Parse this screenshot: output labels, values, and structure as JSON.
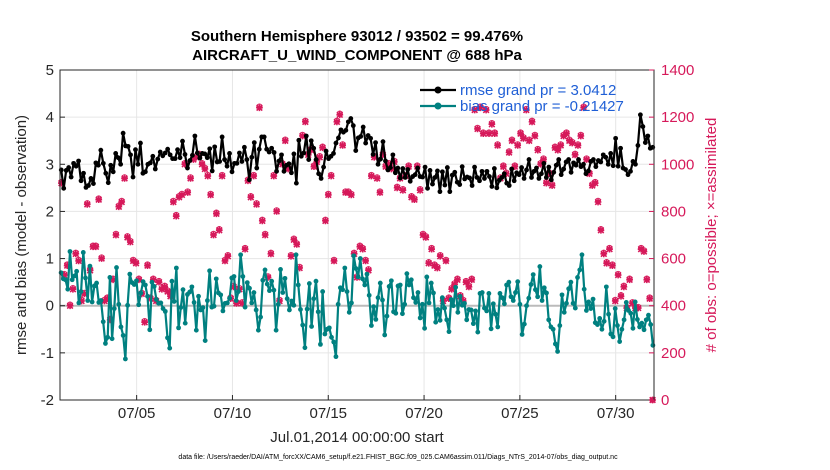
{
  "chart_data": {
    "type": "line",
    "title_line1": "Southern Hemisphere 93012 / 93502 = 99.476%",
    "title_line2": "AIRCRAFT_U_WIND_COMPONENT @ 688 hPa",
    "xlabel": "Jul.01,2014 00:00:00 start",
    "ylabel_left": "rmse and bias (model - observation)",
    "ylabel_right": "# of obs: o=possible; ×=assimilated",
    "footer": "data file: /Users/raeder/DAI/ATM_forcXX/CAM6_setup/f.e21.FHIST_BGC.f09_025.CAM6assim.011/Diags_NTrS_2014-07/obs_diag_output.nc",
    "xlim": [
      1.0,
      32.0
    ],
    "ylim_left": [
      -2,
      5
    ],
    "ylim_right": [
      0,
      1400
    ],
    "x_ticks": [
      5,
      10,
      15,
      20,
      25,
      30
    ],
    "x_tick_labels": [
      "07/05",
      "07/10",
      "07/15",
      "07/20",
      "07/25",
      "07/30"
    ],
    "y_left_ticks": [
      -2,
      -1,
      0,
      1,
      2,
      3,
      4,
      5
    ],
    "y_left_tick_labels": [
      "-2",
      "-1",
      "0",
      "1",
      "2",
      "3",
      "4",
      "5"
    ],
    "y_right_ticks": [
      0,
      200,
      400,
      600,
      800,
      1000,
      1200,
      1400
    ],
    "y_right_tick_labels": [
      "0",
      "200",
      "400",
      "600",
      "800",
      "1000",
      "1200",
      "1400"
    ],
    "legend": [
      {
        "label": "rmse grand pr = 3.0412",
        "color": "#000000"
      },
      {
        "label": "bias grand pr = -0.21427",
        "color": "#008080"
      }
    ],
    "legend_position": "top-right",
    "zero_line": 0,
    "colors": {
      "rmse": "#000000",
      "bias": "#008080",
      "obs": "#d6195a",
      "zero": "#bbbbbb",
      "legend_text": "#1f5fd6",
      "right_axis": "#d6195a"
    },
    "series": [
      {
        "name": "rmse",
        "axis": "left",
        "values": [
          2.88,
          2.49,
          2.87,
          2.93,
          2.73,
          3.02,
          2.96,
          3.07,
          2.65,
          2.81,
          2.51,
          2.55,
          2.7,
          2.59,
          3.03,
          2.98,
          3.3,
          3.02,
          2.81,
          2.61,
          2.98,
          2.84,
          3.23,
          3.14,
          3.0,
          3.66,
          3.39,
          3.38,
          3.2,
          2.73,
          3.31,
          3.0,
          3.45,
          2.81,
          2.84,
          3.0,
          3.03,
          3.17,
          2.9,
          3.11,
          3.26,
          3.18,
          3.24,
          3.32,
          3.2,
          3.12,
          3.12,
          3.31,
          3.14,
          3.49,
          3.21,
          2.92,
          3.08,
          3.19,
          3.6,
          3.24,
          3.13,
          3.23,
          3.22,
          3.14,
          3.33,
          2.86,
          3.37,
          3.05,
          3.06,
          3.58,
          3.1,
          2.96,
          3.23,
          2.84,
          3.02,
          3.02,
          3.24,
          3.06,
          3.36,
          3.1,
          2.67,
          3.15,
          3.46,
          2.92,
          3.32,
          3.58,
          3.58,
          3.32,
          3.26,
          3.34,
          3.25,
          2.85,
          3.07,
          3.2,
          2.85,
          2.98,
          3.01,
          2.82,
          3.22,
          2.6,
          3.51,
          3.17,
          3.24,
          3.6,
          3.1,
          3.5,
          3.34,
          3.1,
          2.8,
          2.7,
          2.94,
          3.28,
          3.12,
          3.17,
          3.23,
          3.45,
          3.56,
          3.73,
          3.68,
          3.72,
          3.9,
          3.97,
          3.82,
          3.29,
          3.56,
          3.59,
          3.79,
          3.45,
          3.61,
          3.55,
          3.21,
          3.46,
          3.0,
          3.11,
          3.48,
          3.07,
          2.88,
          2.93,
          3.2,
          2.82,
          2.92,
          2.71,
          2.91,
          2.72,
          2.89,
          2.64,
          2.74,
          2.78,
          2.92,
          2.74,
          2.73,
          2.94,
          2.49,
          2.87,
          2.58,
          2.72,
          2.86,
          2.42,
          2.84,
          2.56,
          2.93,
          2.42,
          2.77,
          2.83,
          2.62,
          2.57,
          2.95,
          2.69,
          2.73,
          2.71,
          2.55,
          2.94,
          2.72,
          2.65,
          2.85,
          2.7,
          2.85,
          2.74,
          2.53,
          2.91,
          2.5,
          2.66,
          2.72,
          2.8,
          2.6,
          2.55,
          2.9,
          2.65,
          2.82,
          2.78,
          2.93,
          2.7,
          2.88,
          3.1,
          2.72,
          2.85,
          2.92,
          2.7,
          2.8,
          3.02,
          2.72,
          2.94,
          2.67,
          2.83,
          2.98,
          3.1,
          2.78,
          2.9,
          3.05,
          3.1,
          2.83,
          3.03,
          2.98,
          3.1,
          2.95,
          3.0,
          2.8,
          2.86,
          3.06,
          3.1,
          2.95,
          3.08,
          3.05,
          3.2,
          3.15,
          3.0,
          3.23,
          2.97,
          3.55,
          2.96,
          3.34,
          2.92,
          2.89,
          2.78,
          2.85,
          3.06,
          3.0,
          3.4,
          4.05,
          3.8,
          3.46,
          3.6,
          3.34,
          3.36
        ]
      },
      {
        "name": "bias",
        "axis": "left",
        "values": [
          0.7,
          0.57,
          0.55,
          0.35,
          1.15,
          0.55,
          0.63,
          0.73,
          0.06,
          0.3,
          1.13,
          0.59,
          0.11,
          0.84,
          0.08,
          0.42,
          0.48,
          0.07,
          0.11,
          -0.34,
          -0.8,
          -0.67,
          0.6,
          -0.7,
          -0.06,
          0.81,
          0.03,
          -0.45,
          -0.63,
          -1.13,
          0.01,
          0.67,
          0.49,
          0.45,
          0.53,
          0.02,
          0.27,
          0.51,
          0.44,
          0.2,
          -0.51,
          0.5,
          0.41,
          0.13,
          0.05,
          0.06,
          -0.06,
          -0.12,
          -0.68,
          -0.9,
          0.52,
          0.09,
          0.8,
          -0.47,
          -0.04,
          0.34,
          -0.37,
          0.24,
          0.29,
          0.4,
          0.07,
          -0.52,
          0.2,
          -0.09,
          -0.04,
          -0.74,
          0.11,
          0.74,
          -0.03,
          -0.01,
          0.57,
          0.27,
          0.23,
          -0.11,
          0.05,
          0.06,
          0.16,
          0.59,
          0.62,
          0.11,
          0.3,
          1.08,
          0.62,
          -0.03,
          0.49,
          0.37,
          0.06,
          0.28,
          -0.09,
          -0.52,
          -0.24,
          0.54,
          0.76,
          0.46,
          0.32,
          0.52,
          0.33,
          -0.52,
          0.03,
          0.77,
          0.28,
          0.58,
          0.15,
          -0.09,
          0.1,
          0.01,
          1.08,
          0.44,
          -0.08,
          -0.41,
          -0.89,
          -0.07,
          0.47,
          -0.44,
          0.15,
          0.52,
          -0.13,
          -0.82,
          0.3,
          -0.6,
          -0.5,
          -0.47,
          -0.67,
          -0.77,
          -1.08,
          0.03,
          0.38,
          0.34,
          0.8,
          0.3,
          -0.14,
          0.06,
          1.06,
          0.79,
          0.61,
          1.0,
          0.57,
          0.44,
          0.67,
          0.22,
          -0.42,
          -0.02,
          -0.29,
          0.17,
          0.48,
          0.12,
          -0.62,
          -0.22,
          0.41,
          0.53,
          -0.13,
          -0.16,
          0.42,
          0.44,
          -0.17,
          0.03,
          0.68,
          0.44,
          0.55,
          0.17,
          0.07,
          0.28,
          -0.26,
          0.03,
          -0.48,
          0.61,
          0.06,
          0.48,
          0.27,
          -0.35,
          -0.08,
          -0.31,
          0.17,
          -0.05,
          -0.3,
          -0.55,
          0.13,
          0.0,
          0.39,
          -0.14,
          0.2,
          0.01,
          0.05,
          -0.3,
          -0.08,
          -0.09,
          -0.38,
          -0.11,
          -0.56,
          0.26,
          0.28,
          -0.05,
          -0.11,
          0.26,
          -0.49,
          0.04,
          -0.18,
          -0.45,
          0.26,
          0.17,
          0.04,
          0.44,
          0.5,
          0.19,
          0.11,
          0.28,
          0.51,
          0.03,
          -0.61,
          -0.39,
          0.0,
          0.16,
          0.45,
          0.66,
          0.34,
          0.19,
          0.83,
          0.11,
          0.38,
          0.27,
          -0.3,
          -0.45,
          -0.5,
          -0.81,
          -0.97,
          -0.42,
          0.23,
          -0.14,
          0.05,
          0.36,
          0.5,
          0.05,
          -0.05,
          0.6,
          0.76,
          1.08,
          0.35,
          -0.1,
          0.08,
          -0.06,
          0.14,
          -0.36,
          -0.4,
          -0.27,
          -0.5,
          -0.33,
          0.4,
          -0.18,
          -0.6,
          -0.66,
          -0.06,
          -0.42,
          -0.76,
          -0.5,
          -0.3,
          0.07,
          -0.1,
          -0.16,
          -0.48,
          0.08,
          -0.29,
          -0.45,
          -0.37,
          -0.51,
          -0.3,
          -0.2,
          -0.4,
          -0.84
        ]
      },
      {
        "name": "obs_assimilated",
        "axis": "right",
        "marker": "x",
        "values": [
          920,
          530,
          570,
          400,
          470,
          620,
          590,
          420,
          450,
          830,
          550,
          650,
          650,
          850,
          600,
          420,
          430,
          340,
          510,
          700,
          820,
          840,
          940,
          690,
          670,
          590,
          580,
          510,
          450,
          330,
          570,
          430,
          510,
          420,
          500,
          470,
          480,
          460,
          440,
          840,
          780,
          860,
          870,
          1000,
          880,
          940,
          1020,
          1030,
          1040,
          1000,
          980,
          950,
          870,
          700,
          790,
          720,
          950,
          590,
          610,
          430,
          480,
          410,
          470,
          410,
          640,
          930,
          860,
          950,
          830,
          1240,
          760,
          700,
          520,
          620,
          950,
          800,
          420,
          1000,
          1100,
          980,
          610,
          680,
          660,
          560,
          1120,
          1180,
          1040,
          1060,
          990,
          1010,
          1030,
          1070,
          760,
          870,
          950,
          590,
          1180,
          1210,
          1080,
          880,
          880,
          870,
          620,
          520,
          650,
          640,
          590,
          550,
          950,
          1030,
          940,
          880,
          1040,
          990,
          1000,
          980,
          1010,
          900,
          940,
          890,
          950,
          990,
          860,
          850,
          990,
          890,
          700,
          690,
          580,
          640,
          570,
          560,
          610,
          420,
          590,
          430,
          470,
          490,
          510,
          440,
          420,
          500,
          480,
          510,
          1230,
          1150,
          1240,
          1130,
          1230,
          1130,
          1170,
          1130,
          1080,
          940,
          990,
          960,
          1050,
          1100,
          990,
          1080,
          1130,
          1110,
          1230,
          1100,
          1180,
          1120,
          1060,
          1000,
          1020,
          920,
          960,
          910,
          1070,
          1060,
          1080,
          1120,
          1130,
          1100,
          1090,
          1040,
          1080,
          1120,
          1240,
          1020,
          960,
          910,
          920,
          840,
          720,
          620,
          580,
          640,
          570,
          420,
          530,
          440,
          480,
          390,
          510,
          410,
          390,
          390,
          640,
          630,
          510,
          430,
          0
        ]
      },
      {
        "name": "obs_possible",
        "axis": "right",
        "marker": "o",
        "values": [
          925,
          535,
          575,
          405,
          475,
          625,
          595,
          425,
          455,
          835,
          555,
          655,
          655,
          855,
          605,
          425,
          435,
          345,
          515,
          705,
          825,
          845,
          945,
          695,
          675,
          595,
          585,
          515,
          455,
          335,
          575,
          435,
          515,
          425,
          505,
          475,
          485,
          465,
          445,
          845,
          785,
          865,
          875,
          1005,
          885,
          945,
          1025,
          1035,
          1045,
          1005,
          985,
          955,
          875,
          705,
          795,
          725,
          955,
          595,
          615,
          435,
          485,
          415,
          475,
          415,
          645,
          935,
          865,
          955,
          835,
          1245,
          765,
          705,
          525,
          625,
          955,
          805,
          425,
          1005,
          1105,
          985,
          615,
          685,
          665,
          565,
          1125,
          1185,
          1045,
          1065,
          995,
          1015,
          1035,
          1075,
          765,
          875,
          955,
          595,
          1185,
          1215,
          1085,
          885,
          885,
          875,
          625,
          525,
          655,
          645,
          595,
          555,
          955,
          1035,
          945,
          885,
          1045,
          995,
          1005,
          985,
          1015,
          905,
          945,
          895,
          955,
          995,
          865,
          855,
          995,
          895,
          705,
          695,
          585,
          645,
          575,
          565,
          615,
          425,
          595,
          435,
          475,
          495,
          515,
          445,
          425,
          505,
          485,
          515,
          1235,
          1155,
          1245,
          1135,
          1235,
          1135,
          1175,
          1135,
          1085,
          945,
          995,
          965,
          1055,
          1105,
          995,
          1085,
          1135,
          1115,
          1235,
          1105,
          1185,
          1125,
          1065,
          1005,
          1025,
          925,
          965,
          915,
          1075,
          1065,
          1085,
          1125,
          1135,
          1105,
          1095,
          1045,
          1085,
          1125,
          1245,
          1025,
          965,
          915,
          925,
          845,
          725,
          625,
          585,
          645,
          575,
          425,
          535,
          445,
          485,
          395,
          515,
          415,
          395,
          395,
          645,
          635,
          515,
          435,
          0
        ]
      }
    ]
  }
}
